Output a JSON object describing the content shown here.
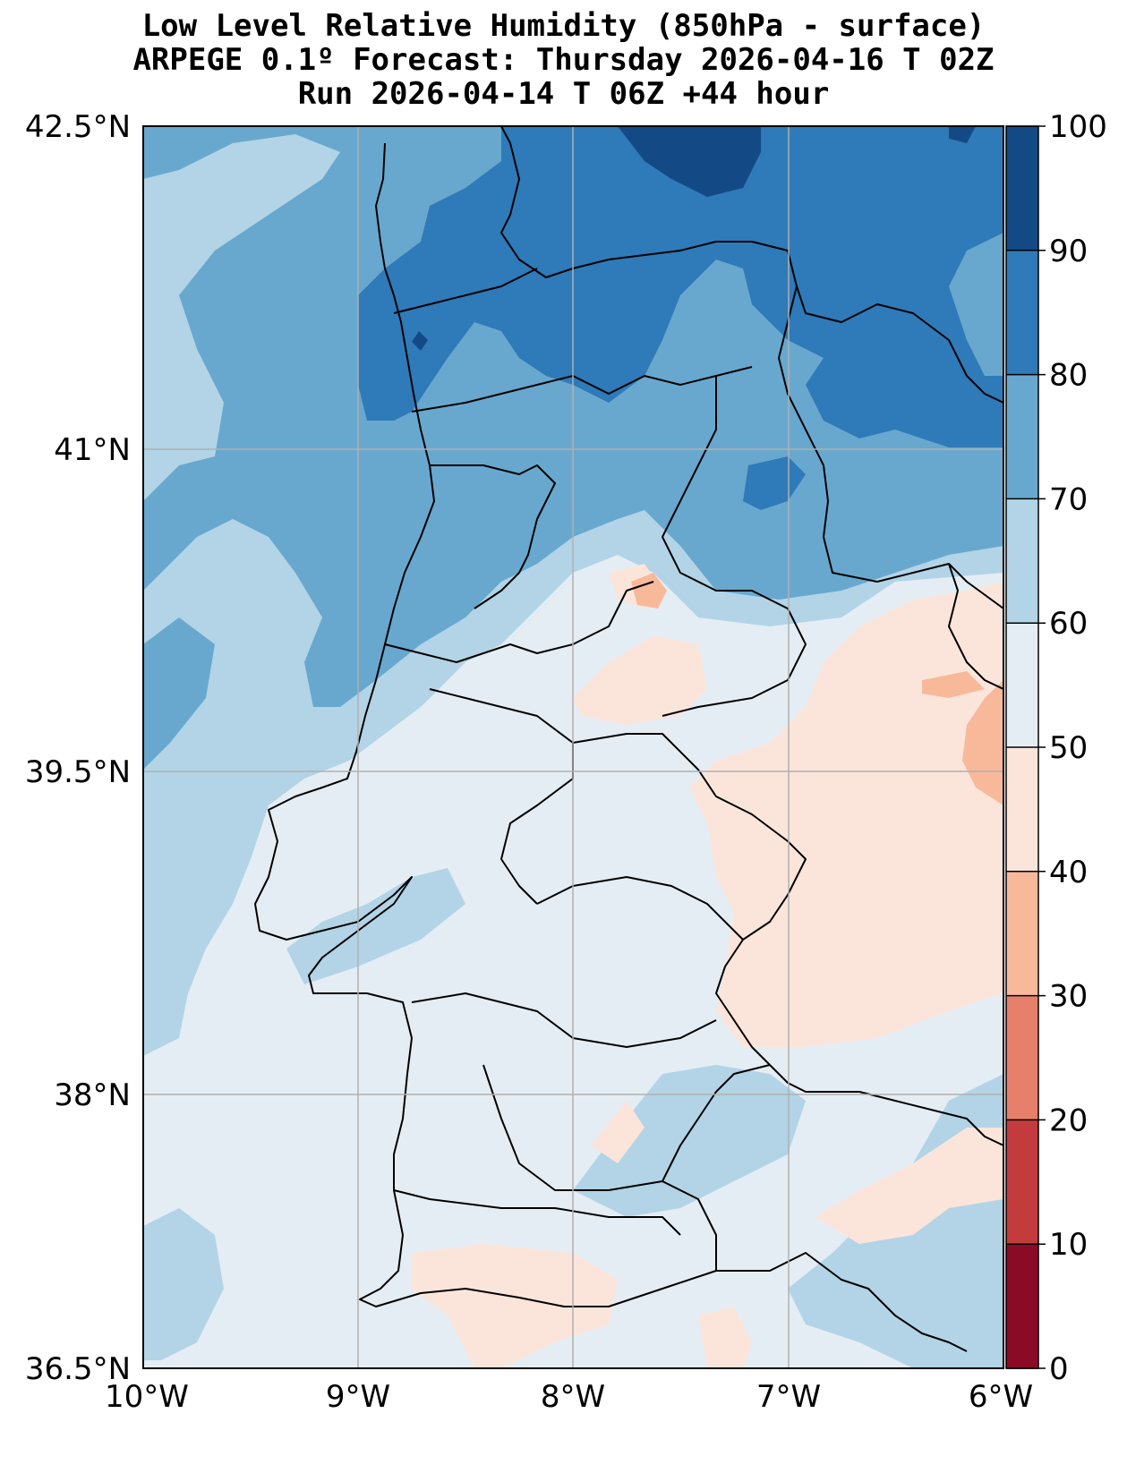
{
  "title": {
    "line1": "Low Level Relative Humidity (850hPa - surface)",
    "line2": "ARPEGE 0.1º Forecast: Thursday 2026-04-16 T 02Z",
    "line3": "Run 2026-04-14 T 06Z +44 hour"
  },
  "axes": {
    "lat_labels": [
      "42.5°N",
      "41°N",
      "39.5°N",
      "38°N",
      "36.5°N"
    ],
    "lon_labels": [
      "10°W",
      "9°W",
      "8°W",
      "7°W",
      "6°W"
    ]
  },
  "colorbar": {
    "labels": [
      "0",
      "10",
      "20",
      "30",
      "40",
      "50",
      "60",
      "70",
      "80",
      "90",
      "100"
    ],
    "levels": [
      0,
      10,
      20,
      30,
      40,
      50,
      60,
      70,
      80,
      90,
      100
    ],
    "colors": [
      "#8b0a26",
      "#c33b3c",
      "#e6806a",
      "#f8b99b",
      "#fbe5da",
      "#e5edf4",
      "#b2d4e6",
      "#68a8cf",
      "#2f7ab8",
      "#134a86"
    ]
  },
  "colors": {
    "rh_50_60": "#e5edf4",
    "rh_60_70": "#b2d4e6",
    "rh_70_80": "#68a8cf",
    "rh_80_90": "#2f7ab8",
    "rh_90_100": "#134a86",
    "rh_40_50": "#fbe5da",
    "rh_30_40": "#f8b99b"
  }
}
